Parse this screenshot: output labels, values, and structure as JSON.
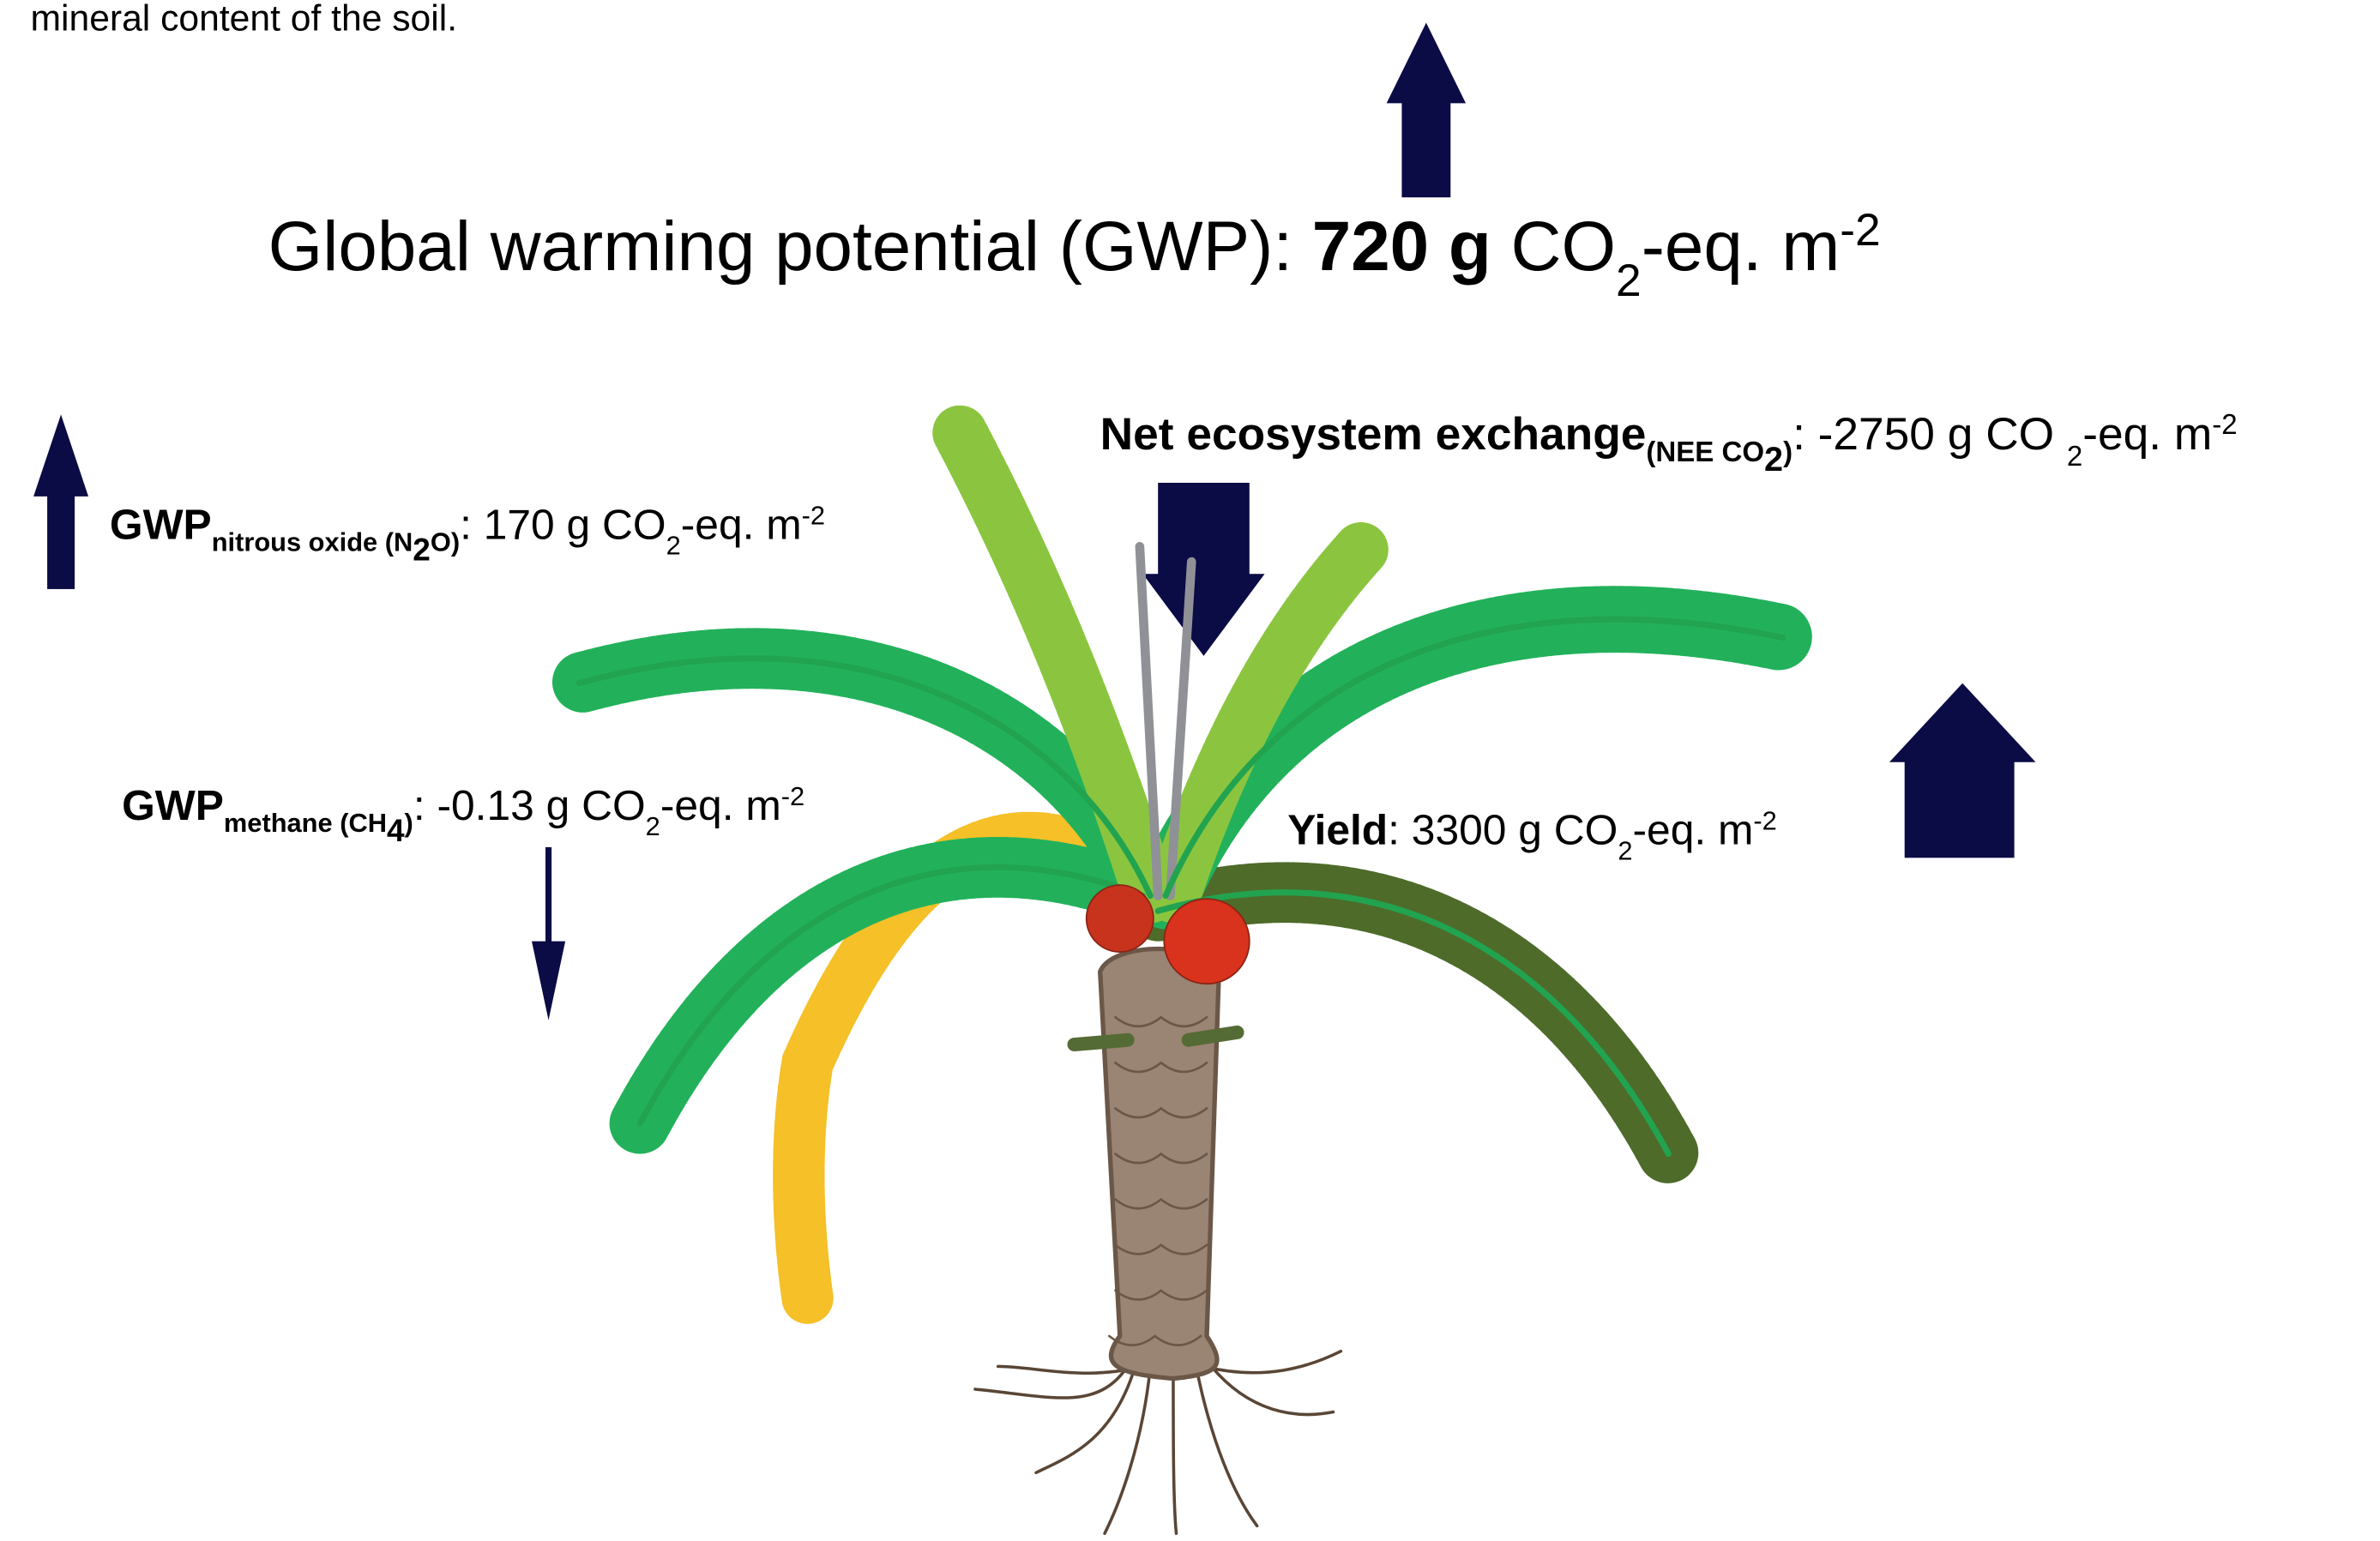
{
  "intro_fragment": "mineral content of the soil.",
  "total": {
    "label": "Global warming potential (GWP): ",
    "value": "720 g",
    "unit": [
      " CO",
      "2",
      "-eq. m",
      "-2"
    ]
  },
  "fluxes": [
    {
      "label": "GWP",
      "subscript": [
        "nitrous oxide (N",
        "2",
        "O)"
      ],
      "value": ": 170 g ",
      "unit": [
        "CO",
        "2",
        "-eq. m",
        "-2"
      ]
    },
    {
      "label": "Net ecosystem exchange",
      "subscript": [
        "(NEE CO",
        "2",
        ")"
      ],
      "value": ": -2750 g ",
      "unit": [
        "CO ",
        "2",
        "-eq. m",
        "-2"
      ]
    },
    {
      "label": "GWP",
      "subscript": [
        "methane (CH",
        "4",
        ")"
      ],
      "value": ": -0.13 g ",
      "unit": [
        "CO",
        "2",
        "-eq. m",
        "-2"
      ]
    },
    {
      "label": "Yield",
      "subscript": [],
      "value": ": 3300 g ",
      "unit": [
        "CO",
        "2",
        "-eq. m",
        "-2"
      ]
    }
  ]
}
